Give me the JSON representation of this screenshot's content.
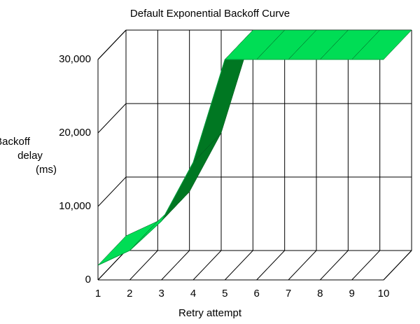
{
  "chart_data": {
    "type": "ribbon3d",
    "title": "Default Exponential Backoff Curve",
    "x_label": "Retry attempt",
    "y_label": [
      "Backoff",
      "delay",
      "(ms)"
    ],
    "categories": [
      "1",
      "2",
      "3",
      "4",
      "5",
      "6",
      "7",
      "8",
      "9",
      "10"
    ],
    "series": [
      {
        "name": "Backoff delay",
        "color": "#00dd55",
        "values": [
          2000,
          4000,
          8000,
          16000,
          30000,
          30000,
          30000,
          30000,
          30000,
          30000
        ]
      }
    ],
    "ylim": [
      0,
      30000
    ],
    "yticks": [
      {
        "value": 0,
        "label": "0"
      },
      {
        "value": 10000,
        "label": "10,000"
      },
      {
        "value": 20000,
        "label": "20,000"
      },
      {
        "value": 30000,
        "label": "30,000"
      }
    ],
    "grid": true
  }
}
